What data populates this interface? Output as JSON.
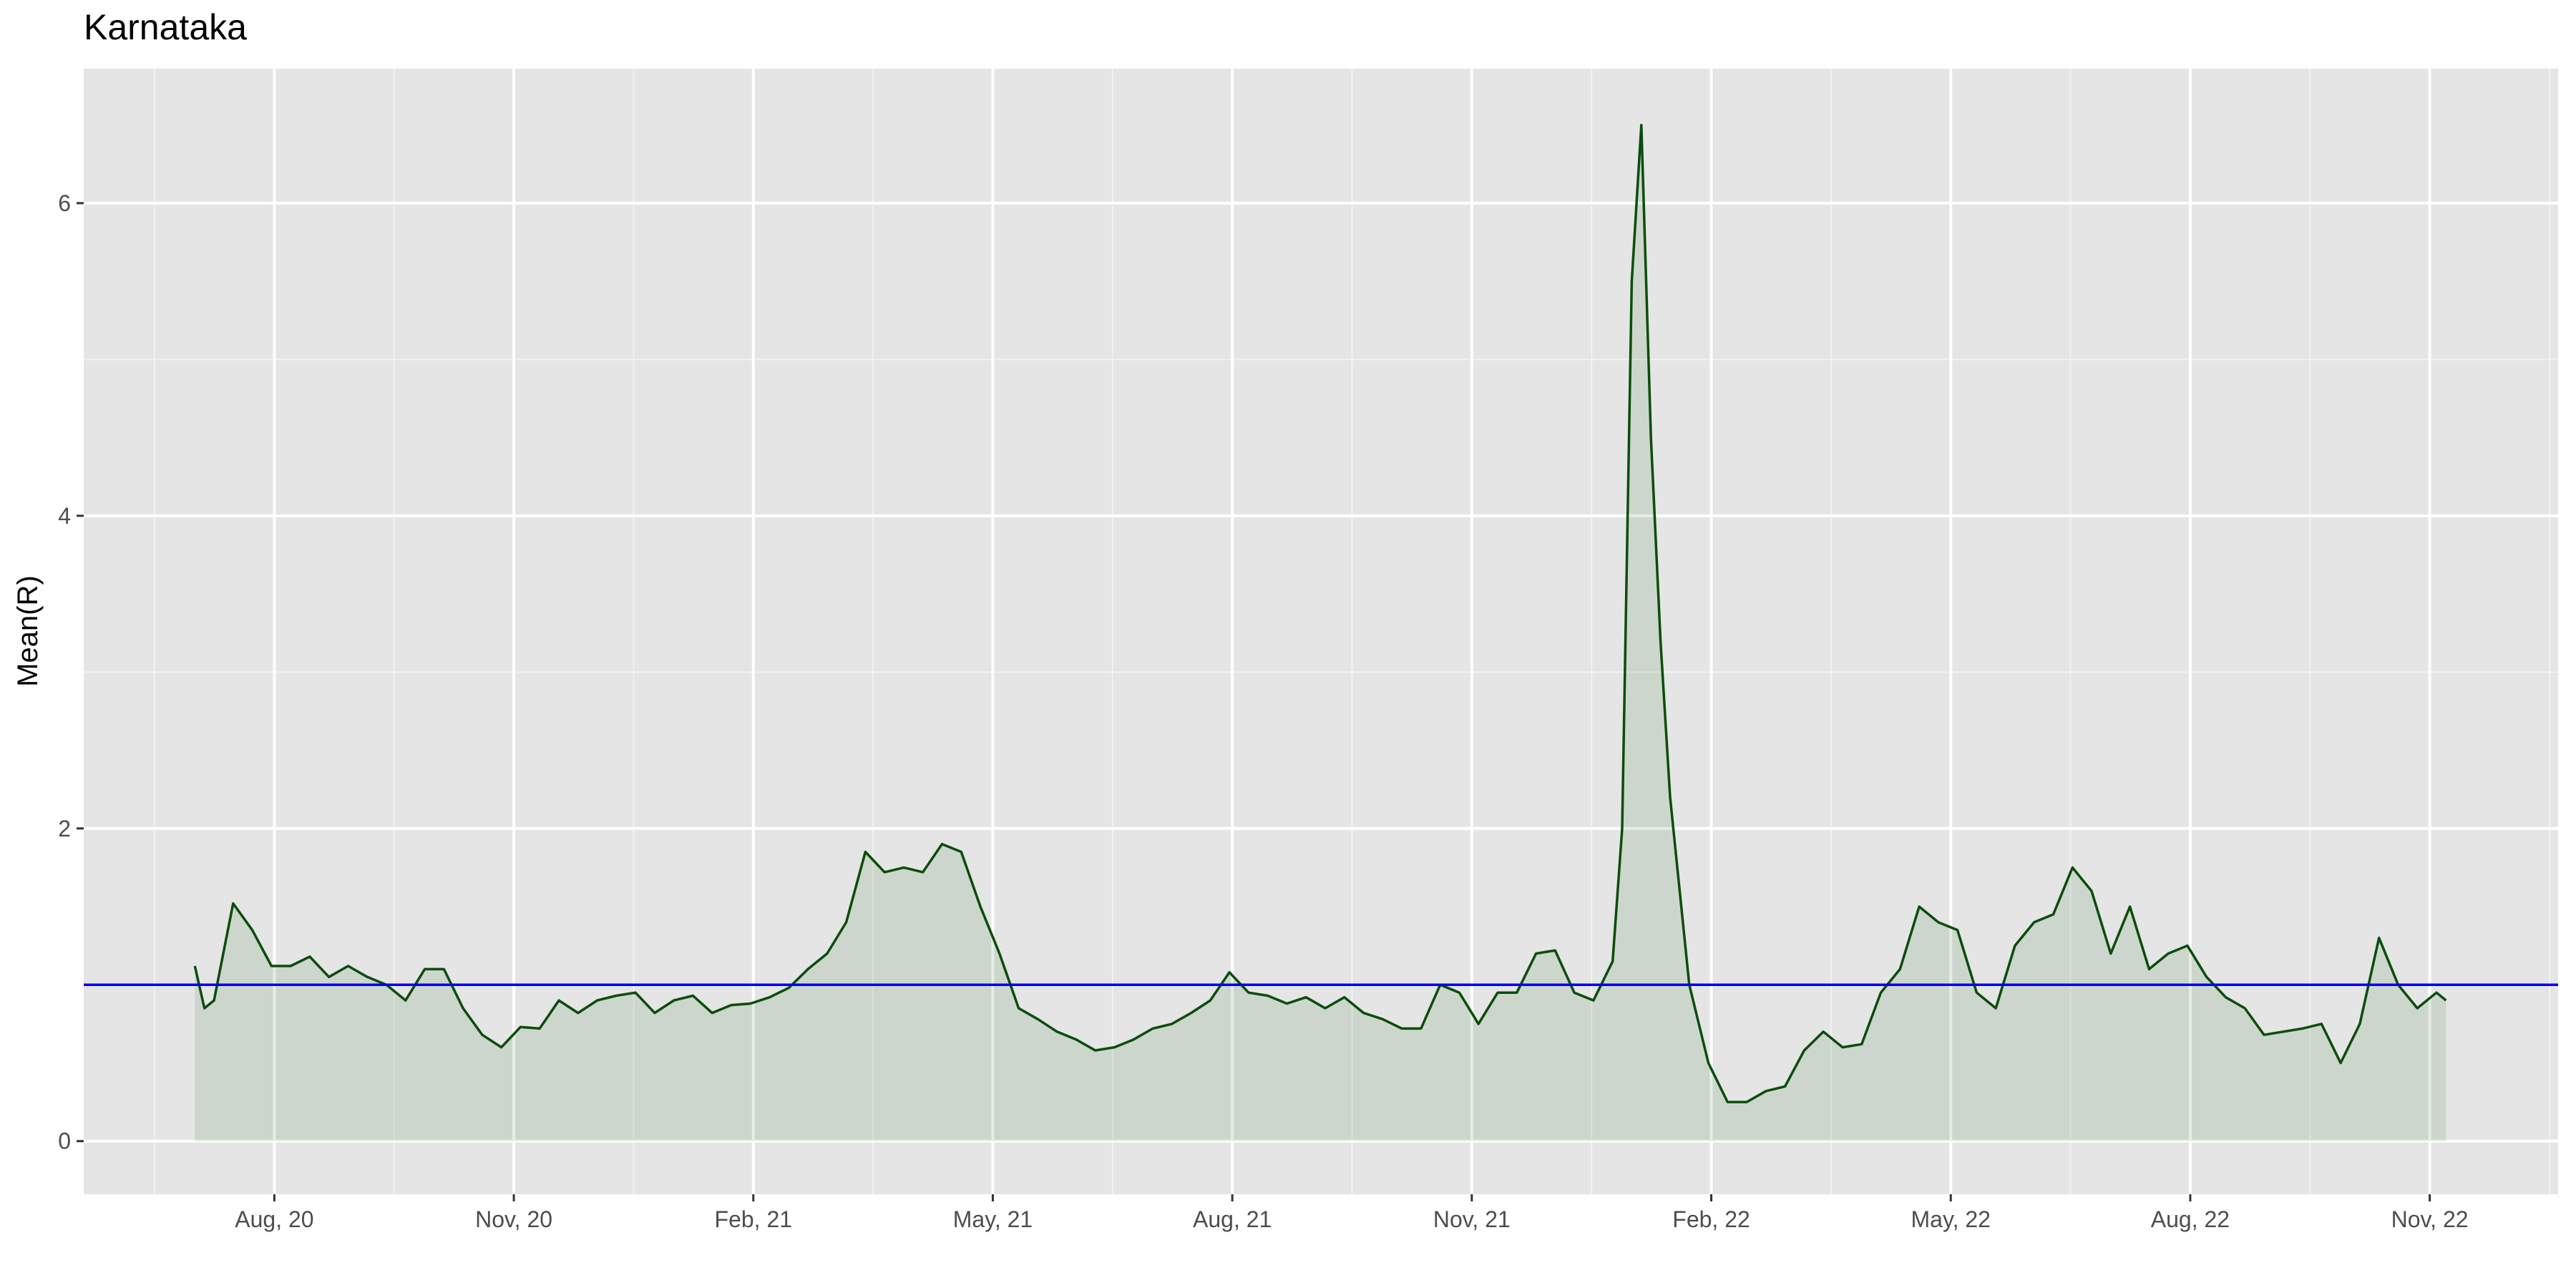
{
  "chart_data": {
    "type": "line",
    "title": "Karnataka",
    "y_label": "Mean(R)",
    "x": [
      2020.5,
      2020.51,
      2020.52,
      2020.54,
      2020.56,
      2020.58,
      2020.6,
      2020.62,
      2020.64,
      2020.66,
      2020.68,
      2020.7,
      2020.72,
      2020.74,
      2020.76,
      2020.78,
      2020.8,
      2020.82,
      2020.84,
      2020.86,
      2020.88,
      2020.9,
      2020.92,
      2020.94,
      2020.96,
      2020.98,
      2021.0,
      2021.02,
      2021.04,
      2021.06,
      2021.08,
      2021.1,
      2021.12,
      2021.14,
      2021.16,
      2021.18,
      2021.2,
      2021.22,
      2021.24,
      2021.26,
      2021.28,
      2021.3,
      2021.32,
      2021.34,
      2021.36,
      2021.38,
      2021.4,
      2021.42,
      2021.44,
      2021.46,
      2021.48,
      2021.5,
      2021.52,
      2021.54,
      2021.56,
      2021.58,
      2021.6,
      2021.62,
      2021.64,
      2021.66,
      2021.68,
      2021.7,
      2021.72,
      2021.74,
      2021.76,
      2021.78,
      2021.8,
      2021.82,
      2021.84,
      2021.86,
      2021.88,
      2021.9,
      2021.92,
      2021.94,
      2021.96,
      2021.98,
      2021.99,
      2022.0,
      2022.01,
      2022.02,
      2022.03,
      2022.04,
      2022.06,
      2022.08,
      2022.1,
      2022.12,
      2022.14,
      2022.16,
      2022.18,
      2022.2,
      2022.22,
      2022.24,
      2022.26,
      2022.28,
      2022.3,
      2022.32,
      2022.34,
      2022.36,
      2022.38,
      2022.4,
      2022.42,
      2022.44,
      2022.46,
      2022.48,
      2022.5,
      2022.52,
      2022.54,
      2022.56,
      2022.58,
      2022.6,
      2022.62,
      2022.64,
      2022.66,
      2022.68,
      2022.7,
      2022.72,
      2022.74,
      2022.76,
      2022.78,
      2022.8,
      2022.82,
      2022.84,
      2022.85
    ],
    "series": [
      {
        "color": "#0b4d0b",
        "fill": "rgba(0,90,0,0.1)",
        "values": [
          1.12,
          0.85,
          0.9,
          1.52,
          1.35,
          1.12,
          1.12,
          1.18,
          1.05,
          1.12,
          1.05,
          1.0,
          0.9,
          1.1,
          1.1,
          0.85,
          0.68,
          0.6,
          0.73,
          0.72,
          0.9,
          0.82,
          0.9,
          0.93,
          0.95,
          0.82,
          0.9,
          0.93,
          0.82,
          0.87,
          0.88,
          0.92,
          0.98,
          1.1,
          1.2,
          1.4,
          1.85,
          1.72,
          1.75,
          1.72,
          1.9,
          1.85,
          1.5,
          1.2,
          0.85,
          0.78,
          0.7,
          0.65,
          0.58,
          0.6,
          0.65,
          0.72,
          0.75,
          0.82,
          0.9,
          1.08,
          0.95,
          0.93,
          0.88,
          0.92,
          0.85,
          0.92,
          0.82,
          0.78,
          0.72,
          0.72,
          1.0,
          0.95,
          0.75,
          0.95,
          0.95,
          1.2,
          1.22,
          0.95,
          0.9,
          1.15,
          2.0,
          5.5,
          6.5,
          4.5,
          3.2,
          2.2,
          1.0,
          0.5,
          0.25,
          0.25,
          0.32,
          0.35,
          0.58,
          0.7,
          0.6,
          0.62,
          0.95,
          1.1,
          1.5,
          1.4,
          1.35,
          0.95,
          0.85,
          1.25,
          1.4,
          1.45,
          1.75,
          1.6,
          1.2,
          1.5,
          1.1,
          1.2,
          1.25,
          1.05,
          0.92,
          0.85,
          0.68,
          0.7,
          0.72,
          0.75,
          0.5,
          0.75,
          1.3,
          1.0,
          0.85,
          0.95,
          0.9
        ]
      }
    ],
    "hline": {
      "value": 1,
      "color": "#0000ff"
    },
    "xlim": [
      2020.384,
      2022.967
    ],
    "xticks": [
      {
        "value": 2020.583,
        "label": "Aug, 20"
      },
      {
        "value": 2020.833,
        "label": "Nov, 20"
      },
      {
        "value": 2021.083,
        "label": "Feb, 21"
      },
      {
        "value": 2021.333,
        "label": "May, 21"
      },
      {
        "value": 2021.583,
        "label": "Aug, 21"
      },
      {
        "value": 2021.833,
        "label": "Nov, 21"
      },
      {
        "value": 2022.083,
        "label": "Feb, 22"
      },
      {
        "value": 2022.333,
        "label": "May, 22"
      },
      {
        "value": 2022.583,
        "label": "Aug, 22"
      },
      {
        "value": 2022.833,
        "label": "Nov, 22"
      }
    ],
    "ylim": [
      -0.34,
      6.86
    ],
    "yticks": [
      0,
      2,
      4,
      6
    ],
    "grid": true
  }
}
